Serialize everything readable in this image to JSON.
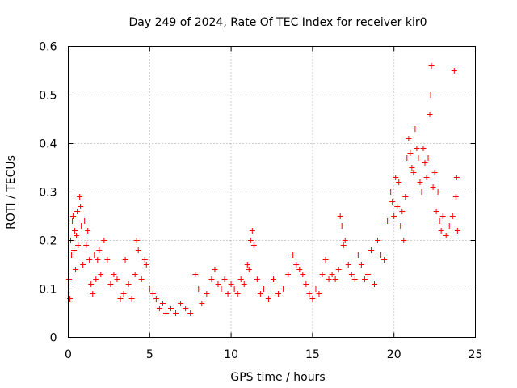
{
  "chart_data": {
    "type": "scatter",
    "title": "Day 249 of 2024, Rate Of TEC Index for receiver kir0",
    "xlabel": "GPS time / hours",
    "ylabel": "ROTI / TECUs",
    "xlim": [
      0,
      25
    ],
    "ylim": [
      0,
      0.6
    ],
    "xticks": [
      0,
      5,
      10,
      15,
      20,
      25
    ],
    "yticks": [
      0,
      0.1,
      0.2,
      0.3,
      0.4,
      0.5,
      0.6
    ],
    "xtick_labels": [
      "0",
      "5",
      "10",
      "15",
      "20",
      "25"
    ],
    "ytick_labels": [
      "0",
      "0.1",
      "0.2",
      "0.3",
      "0.4",
      "0.5",
      "0.6"
    ],
    "grid": true,
    "marker": "+",
    "marker_color": "#ff0000",
    "series": [
      {
        "points": [
          [
            0.05,
            0.12
          ],
          [
            0.1,
            0.08
          ],
          [
            0.15,
            0.2
          ],
          [
            0.2,
            0.17
          ],
          [
            0.25,
            0.24
          ],
          [
            0.3,
            0.25
          ],
          [
            0.35,
            0.18
          ],
          [
            0.4,
            0.22
          ],
          [
            0.45,
            0.14
          ],
          [
            0.5,
            0.21
          ],
          [
            0.55,
            0.26
          ],
          [
            0.6,
            0.19
          ],
          [
            0.7,
            0.29
          ],
          [
            0.75,
            0.27
          ],
          [
            0.8,
            0.23
          ],
          [
            0.9,
            0.15
          ],
          [
            1.0,
            0.24
          ],
          [
            1.1,
            0.19
          ],
          [
            1.2,
            0.22
          ],
          [
            1.3,
            0.16
          ],
          [
            1.4,
            0.11
          ],
          [
            1.5,
            0.09
          ],
          [
            1.6,
            0.17
          ],
          [
            1.7,
            0.12
          ],
          [
            1.8,
            0.16
          ],
          [
            1.9,
            0.18
          ],
          [
            2.0,
            0.13
          ],
          [
            2.2,
            0.2
          ],
          [
            2.4,
            0.16
          ],
          [
            2.6,
            0.11
          ],
          [
            2.8,
            0.13
          ],
          [
            3.0,
            0.12
          ],
          [
            3.2,
            0.08
          ],
          [
            3.4,
            0.09
          ],
          [
            3.5,
            0.16
          ],
          [
            3.7,
            0.11
          ],
          [
            3.9,
            0.08
          ],
          [
            4.1,
            0.13
          ],
          [
            4.2,
            0.2
          ],
          [
            4.3,
            0.18
          ],
          [
            4.5,
            0.12
          ],
          [
            4.7,
            0.16
          ],
          [
            4.8,
            0.15
          ],
          [
            5.0,
            0.1
          ],
          [
            5.2,
            0.09
          ],
          [
            5.4,
            0.08
          ],
          [
            5.6,
            0.06
          ],
          [
            5.8,
            0.07
          ],
          [
            6.0,
            0.05
          ],
          [
            6.3,
            0.06
          ],
          [
            6.6,
            0.05
          ],
          [
            6.9,
            0.07
          ],
          [
            7.2,
            0.06
          ],
          [
            7.5,
            0.05
          ],
          [
            7.8,
            0.13
          ],
          [
            8.0,
            0.1
          ],
          [
            8.2,
            0.07
          ],
          [
            8.5,
            0.09
          ],
          [
            8.8,
            0.12
          ],
          [
            9.0,
            0.14
          ],
          [
            9.2,
            0.11
          ],
          [
            9.4,
            0.1
          ],
          [
            9.6,
            0.12
          ],
          [
            9.8,
            0.09
          ],
          [
            10.0,
            0.11
          ],
          [
            10.2,
            0.1
          ],
          [
            10.4,
            0.09
          ],
          [
            10.6,
            0.12
          ],
          [
            10.8,
            0.11
          ],
          [
            11.0,
            0.15
          ],
          [
            11.1,
            0.14
          ],
          [
            11.2,
            0.2
          ],
          [
            11.3,
            0.22
          ],
          [
            11.4,
            0.19
          ],
          [
            11.6,
            0.12
          ],
          [
            11.8,
            0.09
          ],
          [
            12.0,
            0.1
          ],
          [
            12.3,
            0.08
          ],
          [
            12.6,
            0.12
          ],
          [
            12.9,
            0.09
          ],
          [
            13.2,
            0.1
          ],
          [
            13.5,
            0.13
          ],
          [
            13.8,
            0.17
          ],
          [
            14.0,
            0.15
          ],
          [
            14.2,
            0.14
          ],
          [
            14.4,
            0.13
          ],
          [
            14.6,
            0.11
          ],
          [
            14.8,
            0.09
          ],
          [
            15.0,
            0.08
          ],
          [
            15.2,
            0.1
          ],
          [
            15.4,
            0.09
          ],
          [
            15.6,
            0.13
          ],
          [
            15.8,
            0.16
          ],
          [
            16.0,
            0.12
          ],
          [
            16.2,
            0.13
          ],
          [
            16.4,
            0.12
          ],
          [
            16.6,
            0.14
          ],
          [
            16.7,
            0.25
          ],
          [
            16.8,
            0.23
          ],
          [
            16.9,
            0.19
          ],
          [
            17.0,
            0.2
          ],
          [
            17.2,
            0.15
          ],
          [
            17.4,
            0.13
          ],
          [
            17.6,
            0.12
          ],
          [
            17.8,
            0.17
          ],
          [
            18.0,
            0.15
          ],
          [
            18.2,
            0.12
          ],
          [
            18.4,
            0.13
          ],
          [
            18.6,
            0.18
          ],
          [
            18.8,
            0.11
          ],
          [
            19.0,
            0.2
          ],
          [
            19.2,
            0.17
          ],
          [
            19.4,
            0.16
          ],
          [
            19.6,
            0.24
          ],
          [
            19.8,
            0.3
          ],
          [
            19.9,
            0.28
          ],
          [
            20.0,
            0.25
          ],
          [
            20.1,
            0.33
          ],
          [
            20.2,
            0.27
          ],
          [
            20.3,
            0.32
          ],
          [
            20.4,
            0.23
          ],
          [
            20.5,
            0.26
          ],
          [
            20.6,
            0.2
          ],
          [
            20.7,
            0.29
          ],
          [
            20.8,
            0.37
          ],
          [
            20.9,
            0.41
          ],
          [
            21.0,
            0.38
          ],
          [
            21.1,
            0.35
          ],
          [
            21.2,
            0.34
          ],
          [
            21.3,
            0.43
          ],
          [
            21.4,
            0.39
          ],
          [
            21.5,
            0.37
          ],
          [
            21.6,
            0.32
          ],
          [
            21.7,
            0.3
          ],
          [
            21.8,
            0.39
          ],
          [
            21.9,
            0.36
          ],
          [
            22.0,
            0.33
          ],
          [
            22.1,
            0.37
          ],
          [
            22.2,
            0.46
          ],
          [
            22.25,
            0.5
          ],
          [
            22.3,
            0.56
          ],
          [
            22.4,
            0.31
          ],
          [
            22.5,
            0.34
          ],
          [
            22.6,
            0.26
          ],
          [
            22.7,
            0.3
          ],
          [
            22.8,
            0.24
          ],
          [
            22.9,
            0.22
          ],
          [
            23.0,
            0.25
          ],
          [
            23.2,
            0.21
          ],
          [
            23.4,
            0.23
          ],
          [
            23.6,
            0.25
          ],
          [
            23.7,
            0.55
          ],
          [
            23.8,
            0.29
          ],
          [
            23.85,
            0.33
          ],
          [
            23.9,
            0.22
          ]
        ]
      }
    ]
  }
}
